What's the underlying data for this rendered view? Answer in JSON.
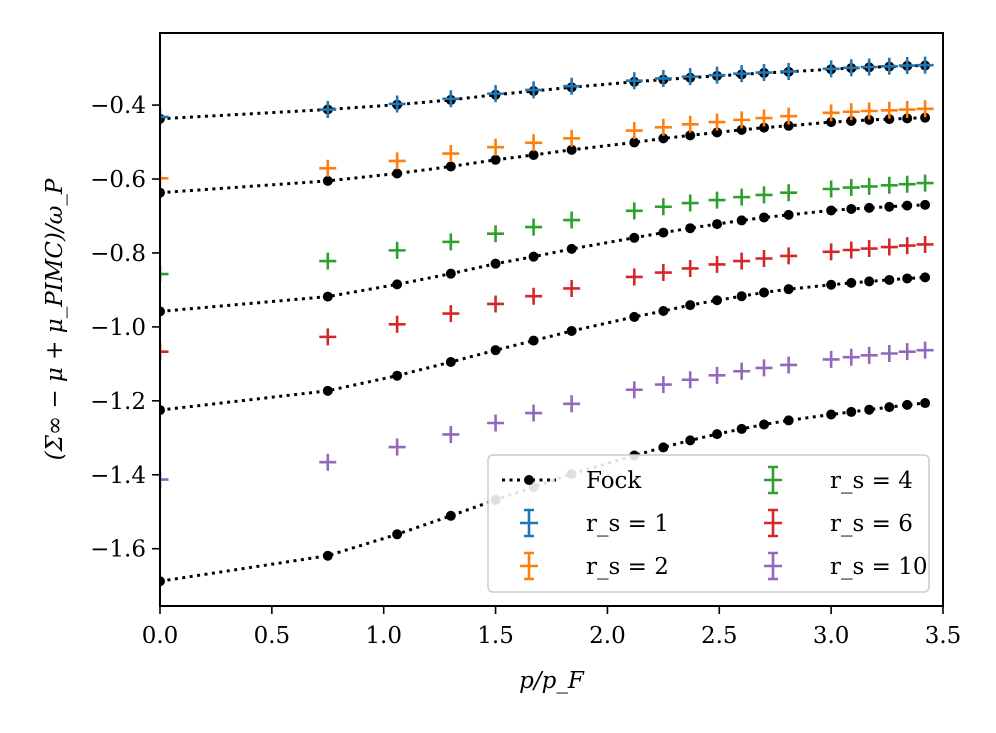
{
  "chart_data": {
    "type": "scatter",
    "xlabel": "p/p_F",
    "ylabel": "(Σ∞ − μ + μ_PIMC)/ω_P",
    "xlim": [
      0.0,
      3.5
    ],
    "ylim": [
      -1.755,
      -0.205
    ],
    "xticks": [
      "0.0",
      "0.5",
      "1.0",
      "1.5",
      "2.0",
      "2.5",
      "3.0",
      "3.5"
    ],
    "yticks": [
      "−0.4",
      "−0.6",
      "−0.8",
      "−1.0",
      "−1.2",
      "−1.4",
      "−1.6"
    ],
    "ytick_values": [
      -0.4,
      -0.6,
      -0.8,
      -1.0,
      -1.2,
      -1.4,
      -1.6
    ],
    "xtick_values": [
      0.0,
      0.5,
      1.0,
      1.5,
      2.0,
      2.5,
      3.0,
      3.5
    ],
    "grid": false,
    "legend_position": "lower-right",
    "x": [
      0.0,
      0.75,
      1.06,
      1.3,
      1.5,
      1.67,
      1.84,
      2.12,
      2.25,
      2.37,
      2.49,
      2.6,
      2.7,
      2.81,
      3.0,
      3.09,
      3.17,
      3.26,
      3.34,
      3.42
    ],
    "fock_series": [
      {
        "name": "Fock r_s=1",
        "values": [
          -0.437,
          -0.412,
          -0.399,
          -0.386,
          -0.372,
          -0.362,
          -0.352,
          -0.337,
          -0.331,
          -0.326,
          -0.321,
          -0.317,
          -0.313,
          -0.31,
          -0.303,
          -0.3,
          -0.298,
          -0.296,
          -0.294,
          -0.293
        ]
      },
      {
        "name": "Fock r_s=2",
        "values": [
          -0.637,
          -0.605,
          -0.585,
          -0.566,
          -0.548,
          -0.535,
          -0.521,
          -0.501,
          -0.49,
          -0.482,
          -0.474,
          -0.467,
          -0.461,
          -0.456,
          -0.446,
          -0.443,
          -0.44,
          -0.438,
          -0.436,
          -0.434
        ]
      },
      {
        "name": "Fock r_s=4",
        "values": [
          -0.958,
          -0.918,
          -0.885,
          -0.856,
          -0.829,
          -0.81,
          -0.789,
          -0.759,
          -0.745,
          -0.733,
          -0.722,
          -0.712,
          -0.704,
          -0.697,
          -0.685,
          -0.681,
          -0.678,
          -0.675,
          -0.672,
          -0.67
        ]
      },
      {
        "name": "Fock r_s=6",
        "values": [
          -1.225,
          -1.173,
          -1.132,
          -1.095,
          -1.063,
          -1.037,
          -1.011,
          -0.973,
          -0.957,
          -0.941,
          -0.928,
          -0.917,
          -0.907,
          -0.898,
          -0.886,
          -0.881,
          -0.877,
          -0.873,
          -0.869,
          -0.866
        ]
      },
      {
        "name": "Fock r_s=10",
        "values": [
          -1.688,
          -1.619,
          -1.561,
          -1.511,
          -1.468,
          -1.433,
          -1.398,
          -1.348,
          -1.326,
          -1.307,
          -1.29,
          -1.276,
          -1.264,
          -1.253,
          -1.237,
          -1.23,
          -1.224,
          -1.217,
          -1.211,
          -1.206
        ]
      }
    ],
    "pimc_x": [
      0.0,
      0.75,
      1.06,
      1.3,
      1.5,
      1.67,
      1.84,
      2.12,
      2.25,
      2.37,
      2.49,
      2.6,
      2.7,
      2.81,
      3.0,
      3.09,
      3.17,
      3.26,
      3.34,
      3.42
    ],
    "series": [
      {
        "name": "r_s = 1",
        "color": "#1f77b4",
        "values": [
          -0.432,
          -0.412,
          -0.397,
          -0.383,
          -0.369,
          -0.359,
          -0.349,
          -0.334,
          -0.328,
          -0.323,
          -0.319,
          -0.315,
          -0.312,
          -0.309,
          -0.302,
          -0.299,
          -0.297,
          -0.295,
          -0.293,
          -0.292
        ]
      },
      {
        "name": "r_s = 2",
        "color": "#ff7f0e",
        "values": [
          -0.598,
          -0.571,
          -0.551,
          -0.531,
          -0.514,
          -0.502,
          -0.49,
          -0.469,
          -0.46,
          -0.452,
          -0.446,
          -0.44,
          -0.435,
          -0.43,
          -0.421,
          -0.418,
          -0.416,
          -0.414,
          -0.412,
          -0.41
        ]
      },
      {
        "name": "r_s = 4",
        "color": "#2ca02c",
        "values": [
          -0.857,
          -0.822,
          -0.793,
          -0.77,
          -0.748,
          -0.73,
          -0.711,
          -0.686,
          -0.675,
          -0.665,
          -0.657,
          -0.649,
          -0.643,
          -0.637,
          -0.627,
          -0.623,
          -0.62,
          -0.617,
          -0.614,
          -0.611
        ]
      },
      {
        "name": "r_s = 6",
        "color": "#d62728",
        "values": [
          -1.067,
          -1.027,
          -0.993,
          -0.964,
          -0.938,
          -0.917,
          -0.896,
          -0.865,
          -0.853,
          -0.842,
          -0.831,
          -0.822,
          -0.815,
          -0.808,
          -0.797,
          -0.792,
          -0.788,
          -0.784,
          -0.78,
          -0.777
        ]
      },
      {
        "name": "r_s = 10",
        "color": "#9467bd",
        "values": [
          -1.413,
          -1.366,
          -1.325,
          -1.291,
          -1.26,
          -1.233,
          -1.208,
          -1.17,
          -1.156,
          -1.143,
          -1.131,
          -1.12,
          -1.111,
          -1.103,
          -1.088,
          -1.082,
          -1.077,
          -1.072,
          -1.067,
          -1.063
        ]
      }
    ],
    "legend": [
      {
        "label": "Fock",
        "kind": "fock"
      },
      {
        "label": "r_s = 1",
        "color": "#1f77b4",
        "num": "1"
      },
      {
        "label": "r_s = 2",
        "color": "#ff7f0e",
        "num": "2"
      },
      {
        "label": "r_s = 4",
        "color": "#2ca02c",
        "num": "4"
      },
      {
        "label": "r_s = 6",
        "color": "#d62728",
        "num": "6"
      },
      {
        "label": "r_s = 10",
        "color": "#9467bd",
        "num": "10"
      }
    ]
  }
}
